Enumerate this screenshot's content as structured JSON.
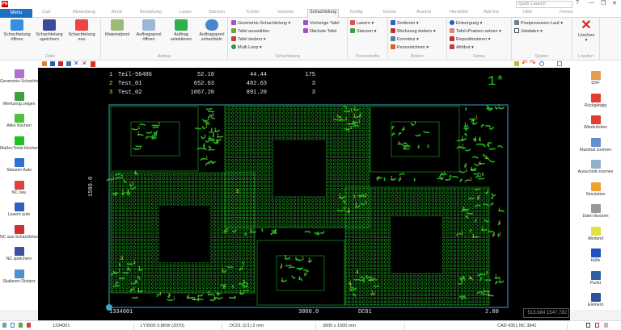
{
  "app": {
    "logo": "PN",
    "quick_launch_placeholder": "Quick Launch",
    "help": "?"
  },
  "tabs": {
    "menu": "Menu",
    "items": [
      "Cad",
      "Abwicklung",
      "Bend",
      "Bemaßung",
      "Lasen",
      "Stanzen",
      "Kombi",
      "Variante",
      "Schachtelung",
      "Konfig",
      "Extras",
      "Ansicht",
      "Hersteller",
      "Add-Ins",
      "Hilfe",
      "Fiensa"
    ],
    "active": "Schachtelung"
  },
  "ribbon": {
    "datei": {
      "label": "Datei",
      "buttons": [
        "Schachtelung öffnen",
        "Schachtelung speichern",
        "Schachtelung neu"
      ]
    },
    "auftrag": {
      "label": "Auftrag",
      "buttons": [
        "Materialpool",
        "Auftragspool öffnen",
        "Auftrag selektieren",
        "Auftragspool schachteln"
      ]
    },
    "schachtelung": {
      "label": "Schachtelung",
      "items": [
        "Geometrie-Schachtelung",
        "Tafel auswählen",
        "Tafel ändern",
        "Multi Loop",
        "Vorherige Tafel",
        "Nächste Tafel"
      ]
    },
    "trennschnitte": {
      "label": "Trennschnitte",
      "items": [
        "Lasern",
        "Stanzen"
      ]
    },
    "aendern": {
      "label": "Ändern",
      "items": [
        "Sortieren",
        "Werkzeug ändern",
        "Korrektur",
        "Kennzeichnen"
      ]
    },
    "extras": {
      "label": "Extras",
      "items": [
        "Entsorgung",
        "Tafel+Pratzen setzen",
        "Repositionieren",
        "Attribut"
      ]
    },
    "system": {
      "label": "System",
      "items": [
        "Postprozessor-Lauf",
        "Jobdaten"
      ]
    },
    "loeschen": {
      "label": "Löschen",
      "button": "Löschen"
    }
  },
  "left_toolbar": [
    "Geometrie-Schachtelung",
    "Werkzeug zeigen",
    "Alles löschen",
    "Maße+Texte löschen",
    "Stanzen Auto",
    "NC neu",
    "Lasern auto",
    "NC aus Schachtelung",
    "NC speichern",
    "Skalieren Distanz"
  ],
  "right_toolbar": [
    "DXF",
    "Rückgängig",
    "Wiederholen",
    "Maximal zoomen",
    "Ausschnitt zoomen",
    "Simulation",
    "Datei drucken",
    "Abstand",
    "Hülle",
    "Punkt",
    "Element"
  ],
  "canvas": {
    "parts_table": [
      {
        "no": "1",
        "name": "Teil-56486",
        "w": "52.10",
        "h": "44.44",
        "qty": "175"
      },
      {
        "no": "2",
        "name": "Test_01",
        "w": "652.63",
        "h": "482.63",
        "qty": "3"
      },
      {
        "no": "3",
        "name": "Test_02",
        "w": "1067.20",
        "h": "891.20",
        "qty": "3"
      }
    ],
    "sheet_indicator": "1*",
    "height_label": "1500.0",
    "bottom": {
      "id": "1334001",
      "width": "3000.0",
      "material": "DC01",
      "thickness": "2.00"
    },
    "coords": "513.684 1547.782",
    "colors": {
      "part": "#1fb01f",
      "sheet": "#3aa8c8",
      "label": "#f0e040",
      "text": "#e8e8e8"
    }
  },
  "status": {
    "job": "1334001",
    "machine": "LY3500  0.8KW   (2070)",
    "material": "DC01   (1/1)   2 mm",
    "sheet": "3000 x 1500 mm",
    "version": "CAD 4351   NC 3841"
  }
}
